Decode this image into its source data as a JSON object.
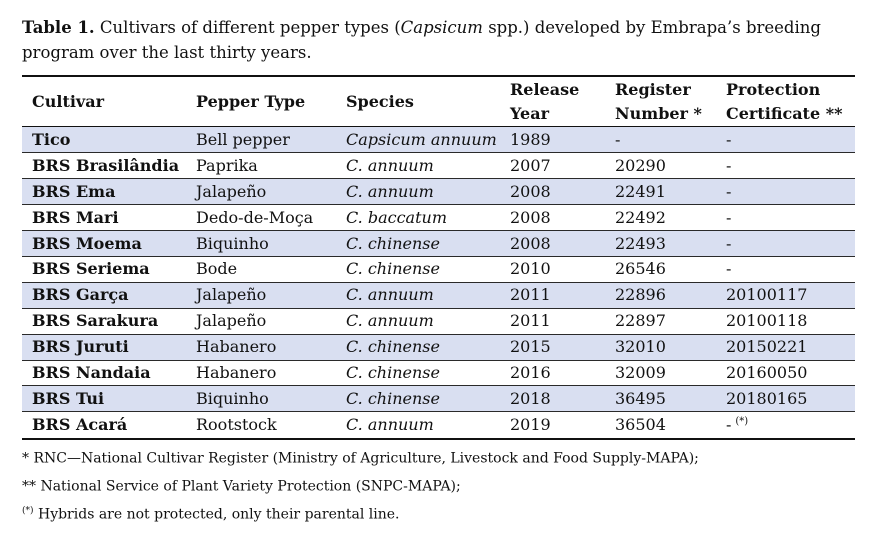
{
  "caption": {
    "label": "Table 1.",
    "text_before": " Cultivars of different pepper types (",
    "text_italic": "Capsicum",
    "text_after": " spp.) developed by Embrapa’s breeding program over the last thirty years."
  },
  "table": {
    "headers": {
      "cultivar": "Cultivar",
      "pepper_type": "Pepper Type",
      "species": "Species",
      "release_year": "Release Year",
      "register_number": "Register Number *",
      "protection_certificate": "Protection Certificate **"
    },
    "rows": [
      {
        "cultivar": "Tico",
        "pepper_type": "Bell pepper",
        "species": "Capsicum annuum",
        "release_year": "1989",
        "register_number": "-",
        "protection_certificate": "-",
        "cert_mark": ""
      },
      {
        "cultivar": "BRS Brasilândia",
        "pepper_type": "Paprika",
        "species": "C. annuum",
        "release_year": "2007",
        "register_number": "20290",
        "protection_certificate": "-",
        "cert_mark": ""
      },
      {
        "cultivar": "BRS Ema",
        "pepper_type": "Jalapeño",
        "species": "C. annuum",
        "release_year": "2008",
        "register_number": "22491",
        "protection_certificate": "-",
        "cert_mark": ""
      },
      {
        "cultivar": "BRS Mari",
        "pepper_type": "Dedo-de-Moça",
        "species": "C. baccatum",
        "release_year": "2008",
        "register_number": "22492",
        "protection_certificate": "-",
        "cert_mark": ""
      },
      {
        "cultivar": "BRS Moema",
        "pepper_type": "Biquinho",
        "species": "C. chinense",
        "release_year": "2008",
        "register_number": "22493",
        "protection_certificate": "-",
        "cert_mark": ""
      },
      {
        "cultivar": "BRS Seriema",
        "pepper_type": "Bode",
        "species": "C. chinense",
        "release_year": "2010",
        "register_number": "26546",
        "protection_certificate": "-",
        "cert_mark": ""
      },
      {
        "cultivar": "BRS Garça",
        "pepper_type": "Jalapeño",
        "species": "C. annuum",
        "release_year": "2011",
        "register_number": "22896",
        "protection_certificate": "20100117",
        "cert_mark": ""
      },
      {
        "cultivar": "BRS Sarakura",
        "pepper_type": "Jalapeño",
        "species": "C. annuum",
        "release_year": "2011",
        "register_number": "22897",
        "protection_certificate": "20100118",
        "cert_mark": ""
      },
      {
        "cultivar": "BRS Juruti",
        "pepper_type": "Habanero",
        "species": "C. chinense",
        "release_year": "2015",
        "register_number": "32010",
        "protection_certificate": "20150221",
        "cert_mark": ""
      },
      {
        "cultivar": "BRS Nandaia",
        "pepper_type": "Habanero",
        "species": "C. chinense",
        "release_year": "2016",
        "register_number": "32009",
        "protection_certificate": "20160050",
        "cert_mark": ""
      },
      {
        "cultivar": "BRS Tui",
        "pepper_type": "Biquinho",
        "species": "C. chinense",
        "release_year": "2018",
        "register_number": "36495",
        "protection_certificate": "20180165",
        "cert_mark": ""
      },
      {
        "cultivar": "BRS Acará",
        "pepper_type": "Rootstock",
        "species": "C. annuum",
        "release_year": "2019",
        "register_number": "36504",
        "protection_certificate": "-",
        "cert_mark": "(*)"
      }
    ],
    "shade_color": "#d9dff1"
  },
  "notes": [
    {
      "mark": "",
      "text": "* RNC—National Cultivar Register (Ministry of Agriculture, Livestock and Food Supply-MAPA);"
    },
    {
      "mark": "",
      "text": "** National Service of Plant Variety Protection (SNPC-MAPA);"
    },
    {
      "mark": "(*)",
      "text": " Hybrids are not protected, only their parental line."
    }
  ]
}
